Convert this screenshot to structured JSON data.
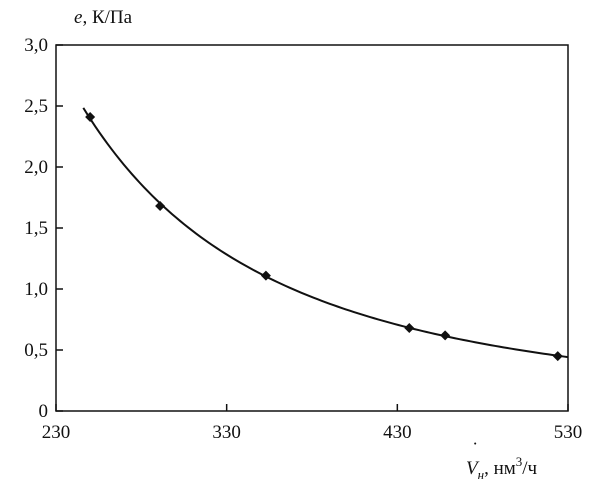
{
  "chart_data": {
    "type": "line",
    "x": [
      250,
      291,
      353,
      437,
      458,
      524
    ],
    "series": [
      {
        "values": [
          2.41,
          1.68,
          1.11,
          0.68,
          0.62,
          0.45
        ]
      }
    ],
    "xlim": [
      230,
      530
    ],
    "ylim": [
      0,
      3.0
    ],
    "xticks": [
      230,
      330,
      430,
      530
    ],
    "yticks": [
      0,
      0.5,
      1.0,
      1.5,
      2.0,
      2.5,
      3.0
    ],
    "xtick_labels": [
      "230",
      "330",
      "430",
      "530"
    ],
    "ytick_labels": [
      "0",
      "0,5",
      "1,0",
      "1,5",
      "2,0",
      "2,5",
      "3,0"
    ],
    "ylabel_symbol": "e",
    "ylabel_unit": ", К/Па",
    "xlabel_symbol": "V",
    "xlabel_sub": "н",
    "xlabel_unit": ", нм",
    "xlabel_sup": "3",
    "xlabel_unit2": "/ч",
    "grid": false,
    "marker": "diamond",
    "line_color": "#111111"
  }
}
